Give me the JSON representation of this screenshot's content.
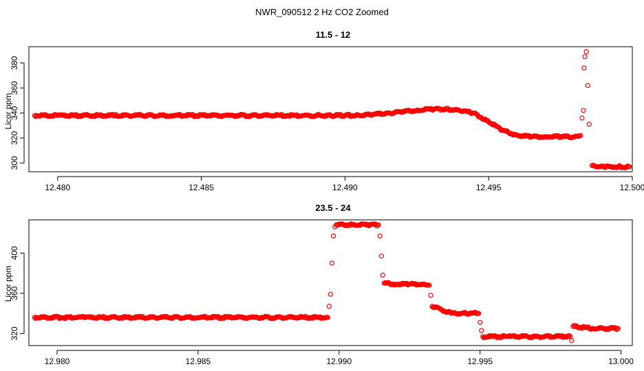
{
  "figure": {
    "title": "NWR_090512  2 Hz CO2 Zoomed"
  },
  "colors": {
    "points": "#ff0000",
    "frame": "#000000",
    "background": "#ffffff"
  },
  "chart_data": [
    {
      "type": "scatter",
      "title": "11.5 - 12",
      "xlabel": "",
      "ylabel": "Licor ppm",
      "xlim": [
        12.479,
        12.5
      ],
      "ylim": [
        293,
        393
      ],
      "xticks": [
        12.48,
        12.485,
        12.49,
        12.495,
        12.5
      ],
      "xtick_labels": [
        "12.480",
        "12.485",
        "12.490",
        "12.495",
        "12.500"
      ],
      "yticks": [
        300,
        320,
        340,
        360,
        380
      ],
      "ytick_labels": [
        "300",
        "320",
        "340",
        "360",
        "380"
      ],
      "grid": false,
      "legend": "none",
      "marker": "open-circle",
      "series": [
        {
          "x": [
            12.4792,
            12.48,
            12.482,
            12.484,
            12.486,
            12.488,
            12.489,
            12.4895,
            12.49,
            12.4905,
            12.491,
            12.4915,
            12.492,
            12.4925,
            12.493,
            12.4935,
            12.494,
            12.4945,
            12.495,
            12.4955,
            12.496,
            12.4965,
            12.497,
            12.4975,
            12.498,
            12.4982,
            12.49825,
            12.4983,
            12.49832,
            12.49835,
            12.4984,
            12.49845,
            12.4985,
            12.4986,
            12.499,
            12.4995,
            12.4999
          ],
          "y": [
            338,
            338,
            338,
            338,
            338,
            338,
            338,
            338,
            338,
            338,
            339,
            340,
            341,
            342,
            343,
            343,
            342,
            340,
            333,
            326,
            322,
            321,
            321,
            321,
            321,
            322,
            336,
            342,
            376,
            385,
            389,
            362,
            331,
            298,
            297,
            297,
            297
          ]
        }
      ]
    },
    {
      "type": "scatter",
      "title": "23.5 - 24",
      "xlabel": "",
      "ylabel": "Licor ppm",
      "xlim": [
        12.979,
        13.0004
      ],
      "ylim": [
        308,
        433
      ],
      "xticks": [
        12.98,
        12.985,
        12.99,
        12.995,
        13.0
      ],
      "xtick_labels": [
        "12.980",
        "12.985",
        "12.990",
        "12.995",
        "13.000"
      ],
      "yticks": [
        320,
        360,
        400
      ],
      "ytick_labels": [
        "320",
        "360",
        "400"
      ],
      "grid": false,
      "legend": "none",
      "marker": "open-circle",
      "series": [
        {
          "x": [
            12.9792,
            12.981,
            12.983,
            12.985,
            12.987,
            12.989,
            12.9896,
            12.98965,
            12.9897,
            12.98975,
            12.9898,
            12.98985,
            12.9899,
            12.9905,
            12.991,
            12.9914,
            12.99145,
            12.9915,
            12.99155,
            12.9916,
            12.992,
            12.9925,
            12.993,
            12.9932,
            12.99325,
            12.9933,
            12.994,
            12.9945,
            12.99495,
            12.995,
            12.99505,
            12.9951,
            12.996,
            12.997,
            12.998,
            12.9982,
            12.99825,
            12.9983,
            12.999,
            12.9999
          ],
          "y": [
            336,
            336,
            336,
            336,
            336,
            336,
            336,
            347,
            359,
            390,
            417,
            426,
            428,
            428,
            428,
            428,
            417,
            397,
            378,
            370,
            369,
            369,
            369,
            368,
            358,
            347,
            340,
            340,
            340,
            331,
            323,
            317,
            317,
            317,
            317,
            317,
            313,
            327,
            325,
            325
          ]
        }
      ]
    }
  ]
}
